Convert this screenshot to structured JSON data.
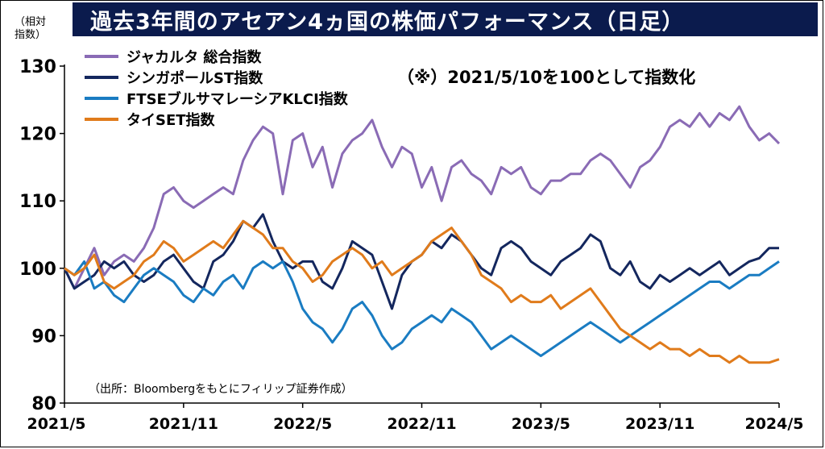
{
  "title": "過去3年間のアセアン4ヵ国の株価パフォーマンス（日足）",
  "unit_label_line1": "（相対",
  "unit_label_line2": "指数）",
  "note": "（※）2021/5/10を100として指数化",
  "source": "（出所：Bloombergをもとにフィリップ証券作成）",
  "chart_data": {
    "type": "line",
    "ylim": [
      80,
      130
    ],
    "yticks": [
      80,
      90,
      100,
      110,
      120,
      130
    ],
    "xticks": [
      "2021/5",
      "2021/11",
      "2022/5",
      "2022/11",
      "2023/5",
      "2023/11",
      "2024/5"
    ],
    "x_range": [
      0,
      36
    ],
    "grid": false,
    "legend_position": "top-left",
    "series": [
      {
        "name": "ジャカルタ 総合指数",
        "color": "#8a6bb5",
        "points": [
          [
            0,
            100
          ],
          [
            0.5,
            97
          ],
          [
            1,
            100
          ],
          [
            1.5,
            103
          ],
          [
            2,
            99
          ],
          [
            2.5,
            101
          ],
          [
            3,
            102
          ],
          [
            3.5,
            101
          ],
          [
            4,
            103
          ],
          [
            4.5,
            106
          ],
          [
            5,
            111
          ],
          [
            5.5,
            112
          ],
          [
            6,
            110
          ],
          [
            6.5,
            109
          ],
          [
            7,
            110
          ],
          [
            7.5,
            111
          ],
          [
            8,
            112
          ],
          [
            8.5,
            111
          ],
          [
            9,
            116
          ],
          [
            9.5,
            119
          ],
          [
            10,
            121
          ],
          [
            10.5,
            120
          ],
          [
            11,
            111
          ],
          [
            11.5,
            119
          ],
          [
            12,
            120
          ],
          [
            12.5,
            115
          ],
          [
            13,
            118
          ],
          [
            13.5,
            112
          ],
          [
            14,
            117
          ],
          [
            14.5,
            119
          ],
          [
            15,
            120
          ],
          [
            15.5,
            122
          ],
          [
            16,
            118
          ],
          [
            16.5,
            115
          ],
          [
            17,
            118
          ],
          [
            17.5,
            117
          ],
          [
            18,
            112
          ],
          [
            18.5,
            115
          ],
          [
            19,
            110
          ],
          [
            19.5,
            115
          ],
          [
            20,
            116
          ],
          [
            20.5,
            114
          ],
          [
            21,
            113
          ],
          [
            21.5,
            111
          ],
          [
            22,
            115
          ],
          [
            22.5,
            114
          ],
          [
            23,
            115
          ],
          [
            23.5,
            112
          ],
          [
            24,
            111
          ],
          [
            24.5,
            113
          ],
          [
            25,
            113
          ],
          [
            25.5,
            114
          ],
          [
            26,
            114
          ],
          [
            26.5,
            116
          ],
          [
            27,
            117
          ],
          [
            27.5,
            116
          ],
          [
            28,
            114
          ],
          [
            28.5,
            112
          ],
          [
            29,
            115
          ],
          [
            29.5,
            116
          ],
          [
            30,
            118
          ],
          [
            30.5,
            121
          ],
          [
            31,
            122
          ],
          [
            31.5,
            121
          ],
          [
            32,
            123
          ],
          [
            32.5,
            121
          ],
          [
            33,
            123
          ],
          [
            33.5,
            122
          ],
          [
            34,
            124
          ],
          [
            34.5,
            121
          ],
          [
            35,
            119
          ],
          [
            35.5,
            120
          ],
          [
            36,
            118.5
          ]
        ]
      },
      {
        "name": "シンガポールST指数",
        "color": "#14275e",
        "points": [
          [
            0,
            100
          ],
          [
            0.5,
            97
          ],
          [
            1,
            98
          ],
          [
            1.5,
            99
          ],
          [
            2,
            101
          ],
          [
            2.5,
            100
          ],
          [
            3,
            101
          ],
          [
            3.5,
            99
          ],
          [
            4,
            98
          ],
          [
            4.5,
            99
          ],
          [
            5,
            101
          ],
          [
            5.5,
            102
          ],
          [
            6,
            100
          ],
          [
            6.5,
            98
          ],
          [
            7,
            97
          ],
          [
            7.5,
            101
          ],
          [
            8,
            102
          ],
          [
            8.5,
            104
          ],
          [
            9,
            107
          ],
          [
            9.5,
            106
          ],
          [
            10,
            108
          ],
          [
            10.5,
            104
          ],
          [
            11,
            101
          ],
          [
            11.5,
            100
          ],
          [
            12,
            101
          ],
          [
            12.5,
            101
          ],
          [
            13,
            98
          ],
          [
            13.5,
            97
          ],
          [
            14,
            100
          ],
          [
            14.5,
            104
          ],
          [
            15,
            103
          ],
          [
            15.5,
            102
          ],
          [
            16,
            98
          ],
          [
            16.5,
            94
          ],
          [
            17,
            99
          ],
          [
            17.5,
            101
          ],
          [
            18,
            102
          ],
          [
            18.5,
            104
          ],
          [
            19,
            103
          ],
          [
            19.5,
            105
          ],
          [
            20,
            104
          ],
          [
            20.5,
            102
          ],
          [
            21,
            100
          ],
          [
            21.5,
            99
          ],
          [
            22,
            103
          ],
          [
            22.5,
            104
          ],
          [
            23,
            103
          ],
          [
            23.5,
            101
          ],
          [
            24,
            100
          ],
          [
            24.5,
            99
          ],
          [
            25,
            101
          ],
          [
            25.5,
            102
          ],
          [
            26,
            103
          ],
          [
            26.5,
            105
          ],
          [
            27,
            104
          ],
          [
            27.5,
            100
          ],
          [
            28,
            99
          ],
          [
            28.5,
            101
          ],
          [
            29,
            98
          ],
          [
            29.5,
            97
          ],
          [
            30,
            99
          ],
          [
            30.5,
            98
          ],
          [
            31,
            99
          ],
          [
            31.5,
            100
          ],
          [
            32,
            99
          ],
          [
            32.5,
            100
          ],
          [
            33,
            101
          ],
          [
            33.5,
            99
          ],
          [
            34,
            100
          ],
          [
            34.5,
            101
          ],
          [
            35,
            101.5
          ],
          [
            35.5,
            103
          ],
          [
            36,
            103
          ]
        ]
      },
      {
        "name": "FTSEブルサマレーシアKLCI指数",
        "color": "#1a7cc2",
        "points": [
          [
            0,
            100
          ],
          [
            0.5,
            99
          ],
          [
            1,
            101
          ],
          [
            1.5,
            97
          ],
          [
            2,
            98
          ],
          [
            2.5,
            96
          ],
          [
            3,
            95
          ],
          [
            3.5,
            97
          ],
          [
            4,
            99
          ],
          [
            4.5,
            100
          ],
          [
            5,
            99
          ],
          [
            5.5,
            98
          ],
          [
            6,
            96
          ],
          [
            6.5,
            95
          ],
          [
            7,
            97
          ],
          [
            7.5,
            96
          ],
          [
            8,
            98
          ],
          [
            8.5,
            99
          ],
          [
            9,
            97
          ],
          [
            9.5,
            100
          ],
          [
            10,
            101
          ],
          [
            10.5,
            100
          ],
          [
            11,
            101
          ],
          [
            11.5,
            98
          ],
          [
            12,
            94
          ],
          [
            12.5,
            92
          ],
          [
            13,
            91
          ],
          [
            13.5,
            89
          ],
          [
            14,
            91
          ],
          [
            14.5,
            94
          ],
          [
            15,
            95
          ],
          [
            15.5,
            93
          ],
          [
            16,
            90
          ],
          [
            16.5,
            88
          ],
          [
            17,
            89
          ],
          [
            17.5,
            91
          ],
          [
            18,
            92
          ],
          [
            18.5,
            93
          ],
          [
            19,
            92
          ],
          [
            19.5,
            94
          ],
          [
            20,
            93
          ],
          [
            20.5,
            92
          ],
          [
            21,
            90
          ],
          [
            21.5,
            88
          ],
          [
            22,
            89
          ],
          [
            22.5,
            90
          ],
          [
            23,
            89
          ],
          [
            23.5,
            88
          ],
          [
            24,
            87
          ],
          [
            24.5,
            88
          ],
          [
            25,
            89
          ],
          [
            25.5,
            90
          ],
          [
            26,
            91
          ],
          [
            26.5,
            92
          ],
          [
            27,
            91
          ],
          [
            27.5,
            90
          ],
          [
            28,
            89
          ],
          [
            28.5,
            90
          ],
          [
            29,
            91
          ],
          [
            29.5,
            92
          ],
          [
            30,
            93
          ],
          [
            30.5,
            94
          ],
          [
            31,
            95
          ],
          [
            31.5,
            96
          ],
          [
            32,
            97
          ],
          [
            32.5,
            98
          ],
          [
            33,
            98
          ],
          [
            33.5,
            97
          ],
          [
            34,
            98
          ],
          [
            34.5,
            99
          ],
          [
            35,
            99
          ],
          [
            35.5,
            100
          ],
          [
            36,
            101
          ]
        ]
      },
      {
        "name": "タイSET指数",
        "color": "#e07b1b",
        "points": [
          [
            0,
            100
          ],
          [
            0.5,
            99
          ],
          [
            1,
            100
          ],
          [
            1.5,
            102
          ],
          [
            2,
            98
          ],
          [
            2.5,
            97
          ],
          [
            3,
            98
          ],
          [
            3.5,
            99
          ],
          [
            4,
            101
          ],
          [
            4.5,
            102
          ],
          [
            5,
            104
          ],
          [
            5.5,
            103
          ],
          [
            6,
            101
          ],
          [
            6.5,
            102
          ],
          [
            7,
            103
          ],
          [
            7.5,
            104
          ],
          [
            8,
            103
          ],
          [
            8.5,
            105
          ],
          [
            9,
            107
          ],
          [
            9.5,
            106
          ],
          [
            10,
            105
          ],
          [
            10.5,
            103
          ],
          [
            11,
            103
          ],
          [
            11.5,
            101
          ],
          [
            12,
            100
          ],
          [
            12.5,
            98
          ],
          [
            13,
            99
          ],
          [
            13.5,
            101
          ],
          [
            14,
            102
          ],
          [
            14.5,
            103
          ],
          [
            15,
            102
          ],
          [
            15.5,
            100
          ],
          [
            16,
            101
          ],
          [
            16.5,
            99
          ],
          [
            17,
            100
          ],
          [
            17.5,
            101
          ],
          [
            18,
            102
          ],
          [
            18.5,
            104
          ],
          [
            19,
            105
          ],
          [
            19.5,
            106
          ],
          [
            20,
            104
          ],
          [
            20.5,
            102
          ],
          [
            21,
            99
          ],
          [
            21.5,
            98
          ],
          [
            22,
            97
          ],
          [
            22.5,
            95
          ],
          [
            23,
            96
          ],
          [
            23.5,
            95
          ],
          [
            24,
            95
          ],
          [
            24.5,
            96
          ],
          [
            25,
            94
          ],
          [
            25.5,
            95
          ],
          [
            26,
            96
          ],
          [
            26.5,
            97
          ],
          [
            27,
            95
          ],
          [
            27.5,
            93
          ],
          [
            28,
            91
          ],
          [
            28.5,
            90
          ],
          [
            29,
            89
          ],
          [
            29.5,
            88
          ],
          [
            30,
            89
          ],
          [
            30.5,
            88
          ],
          [
            31,
            88
          ],
          [
            31.5,
            87
          ],
          [
            32,
            88
          ],
          [
            32.5,
            87
          ],
          [
            33,
            87
          ],
          [
            33.5,
            86
          ],
          [
            34,
            87
          ],
          [
            34.5,
            86
          ],
          [
            35,
            86
          ],
          [
            35.5,
            86
          ],
          [
            36,
            86.5
          ]
        ]
      }
    ]
  }
}
